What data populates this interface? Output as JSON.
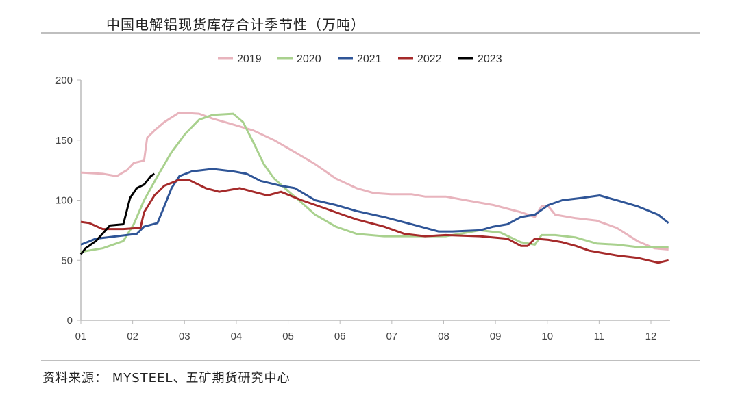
{
  "title": "中国电解铝现货库存合计季节性（万吨）",
  "source": "资料来源： MYSTEEL、五矿期货研究中心",
  "chart_data": {
    "type": "line",
    "title": "中国电解铝现货库存合计季节性（万吨）",
    "xlabel": "",
    "ylabel": "",
    "xlim": [
      1,
      12.37
    ],
    "ylim": [
      0,
      200
    ],
    "yticks": [
      0,
      50,
      100,
      150,
      200
    ],
    "xticks": [
      "01",
      "02",
      "03",
      "04",
      "05",
      "06",
      "07",
      "08",
      "09",
      "10",
      "11",
      "12"
    ],
    "grid": false,
    "legend": "top",
    "series": [
      {
        "name": "2019",
        "color": "#e8b4bd",
        "points": [
          [
            1.0,
            123
          ],
          [
            1.42,
            122
          ],
          [
            1.69,
            120
          ],
          [
            1.89,
            125
          ],
          [
            2.02,
            131
          ],
          [
            2.22,
            133
          ],
          [
            2.28,
            152
          ],
          [
            2.42,
            158
          ],
          [
            2.61,
            165
          ],
          [
            2.9,
            173
          ],
          [
            3.28,
            172
          ],
          [
            3.54,
            168
          ],
          [
            3.94,
            163
          ],
          [
            4.33,
            158
          ],
          [
            4.73,
            150
          ],
          [
            5.13,
            140
          ],
          [
            5.52,
            130
          ],
          [
            5.92,
            118
          ],
          [
            6.32,
            110
          ],
          [
            6.65,
            106
          ],
          [
            6.98,
            105
          ],
          [
            7.38,
            105
          ],
          [
            7.64,
            103
          ],
          [
            8.04,
            103
          ],
          [
            8.43,
            100
          ],
          [
            8.96,
            96
          ],
          [
            9.49,
            90
          ],
          [
            9.76,
            86
          ],
          [
            9.89,
            95
          ],
          [
            10.02,
            95
          ],
          [
            10.15,
            88
          ],
          [
            10.55,
            85
          ],
          [
            10.95,
            83
          ],
          [
            11.34,
            77
          ],
          [
            11.74,
            66
          ],
          [
            12.07,
            60
          ],
          [
            12.34,
            59
          ]
        ]
      },
      {
        "name": "2020",
        "color": "#a9d18e",
        "points": [
          [
            1.0,
            57
          ],
          [
            1.42,
            60
          ],
          [
            1.82,
            66
          ],
          [
            2.02,
            80
          ],
          [
            2.22,
            100
          ],
          [
            2.48,
            120
          ],
          [
            2.75,
            140
          ],
          [
            3.01,
            155
          ],
          [
            3.28,
            167
          ],
          [
            3.54,
            171
          ],
          [
            3.94,
            172
          ],
          [
            4.13,
            165
          ],
          [
            4.33,
            148
          ],
          [
            4.53,
            130
          ],
          [
            4.73,
            118
          ],
          [
            4.99,
            108
          ],
          [
            5.26,
            98
          ],
          [
            5.52,
            88
          ],
          [
            5.92,
            78
          ],
          [
            6.32,
            72
          ],
          [
            6.85,
            70
          ],
          [
            7.38,
            70
          ],
          [
            8.04,
            70
          ],
          [
            8.7,
            75
          ],
          [
            9.1,
            73
          ],
          [
            9.49,
            65
          ],
          [
            9.76,
            63
          ],
          [
            9.89,
            71
          ],
          [
            10.15,
            71
          ],
          [
            10.55,
            69
          ],
          [
            10.95,
            64
          ],
          [
            11.34,
            63
          ],
          [
            11.74,
            61
          ],
          [
            12.34,
            61
          ]
        ]
      },
      {
        "name": "2021",
        "color": "#2f5597",
        "points": [
          [
            1.0,
            63
          ],
          [
            1.29,
            68
          ],
          [
            1.69,
            70
          ],
          [
            2.08,
            72
          ],
          [
            2.22,
            78
          ],
          [
            2.48,
            81
          ],
          [
            2.61,
            95
          ],
          [
            2.75,
            110
          ],
          [
            2.9,
            120
          ],
          [
            3.14,
            124
          ],
          [
            3.54,
            126
          ],
          [
            3.94,
            124
          ],
          [
            4.2,
            122
          ],
          [
            4.47,
            116
          ],
          [
            4.86,
            112
          ],
          [
            5.13,
            110
          ],
          [
            5.52,
            100
          ],
          [
            5.92,
            96
          ],
          [
            6.32,
            91
          ],
          [
            6.85,
            86
          ],
          [
            7.38,
            80
          ],
          [
            7.9,
            74
          ],
          [
            8.17,
            74
          ],
          [
            8.7,
            75
          ],
          [
            8.96,
            78
          ],
          [
            9.23,
            80
          ],
          [
            9.49,
            86
          ],
          [
            9.76,
            88
          ],
          [
            10.02,
            96
          ],
          [
            10.29,
            100
          ],
          [
            10.68,
            102
          ],
          [
            11.01,
            104
          ],
          [
            11.34,
            100
          ],
          [
            11.74,
            95
          ],
          [
            12.14,
            88
          ],
          [
            12.34,
            81
          ]
        ]
      },
      {
        "name": "2022",
        "color": "#a52a2a",
        "points": [
          [
            1.0,
            82
          ],
          [
            1.16,
            81
          ],
          [
            1.42,
            76
          ],
          [
            1.82,
            76
          ],
          [
            2.15,
            77
          ],
          [
            2.22,
            90
          ],
          [
            2.42,
            104
          ],
          [
            2.61,
            112
          ],
          [
            2.9,
            117
          ],
          [
            3.08,
            117
          ],
          [
            3.41,
            110
          ],
          [
            3.67,
            107
          ],
          [
            4.07,
            110
          ],
          [
            4.33,
            107
          ],
          [
            4.6,
            104
          ],
          [
            4.86,
            107
          ],
          [
            5.26,
            100
          ],
          [
            5.66,
            94
          ],
          [
            6.05,
            88
          ],
          [
            6.32,
            84
          ],
          [
            6.85,
            78
          ],
          [
            7.24,
            72
          ],
          [
            7.64,
            70
          ],
          [
            8.04,
            71
          ],
          [
            8.7,
            70
          ],
          [
            9.23,
            68
          ],
          [
            9.49,
            62
          ],
          [
            9.62,
            62
          ],
          [
            9.76,
            68
          ],
          [
            10.02,
            67
          ],
          [
            10.29,
            65
          ],
          [
            10.55,
            62
          ],
          [
            10.81,
            58
          ],
          [
            11.34,
            54
          ],
          [
            11.74,
            52
          ],
          [
            12.14,
            48
          ],
          [
            12.34,
            50
          ]
        ]
      },
      {
        "name": "2023",
        "color": "#000000",
        "points": [
          [
            1.0,
            55
          ],
          [
            1.09,
            60
          ],
          [
            1.29,
            66
          ],
          [
            1.56,
            79
          ],
          [
            1.82,
            80
          ],
          [
            1.95,
            102
          ],
          [
            2.08,
            110
          ],
          [
            2.22,
            113
          ],
          [
            2.35,
            120
          ],
          [
            2.42,
            122
          ]
        ]
      }
    ]
  }
}
